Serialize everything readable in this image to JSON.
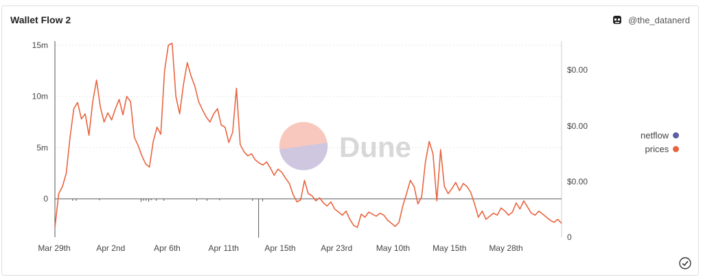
{
  "header": {
    "title": "Wallet Flow 2",
    "author": "@the_datanerd"
  },
  "watermark": {
    "text": "Dune"
  },
  "status": {
    "icon": "check-circle-icon"
  },
  "colors": {
    "netflow": "#5b5ea6",
    "prices": "#e8643f",
    "axis": "#555555",
    "grid": "#e6e6e6"
  },
  "chart_data": {
    "type": "line",
    "title": "Wallet Flow 2",
    "legend_position": "right",
    "x_tick_labels": [
      "Mar 29th",
      "Apr 2nd",
      "Apr 6th",
      "Apr 11th",
      "Apr 15th",
      "Apr 23rd",
      "May 10th",
      "May 15th",
      "May 28th"
    ],
    "y_left": {
      "ticks": [
        "15m",
        "10m",
        "5m",
        "0"
      ],
      "tick_values": [
        15000000,
        10000000,
        5000000,
        0
      ]
    },
    "y_right": {
      "ticks": [
        "$0.00",
        "$0.00",
        "$0.00",
        "0"
      ]
    },
    "series": [
      {
        "name": "prices",
        "axis": "right",
        "values": [
          -2.8,
          0.5,
          1.2,
          2.5,
          6.0,
          8.8,
          9.4,
          7.8,
          8.3,
          6.2,
          9.5,
          11.6,
          9.0,
          7.5,
          8.4,
          7.7,
          8.8,
          9.7,
          8.2,
          10.0,
          9.5,
          6.0,
          5.2,
          4.2,
          3.4,
          3.1,
          5.6,
          7.0,
          6.3,
          12.5,
          15.0,
          15.2,
          10.0,
          8.3,
          11.2,
          13.3,
          12.0,
          11.0,
          9.5,
          8.7,
          8.0,
          7.5,
          8.3,
          8.8,
          7.2,
          7.0,
          5.5,
          6.5,
          10.8,
          5.3,
          4.6,
          4.2,
          4.4,
          3.8,
          3.5,
          3.3,
          3.6,
          3.0,
          2.3,
          2.9,
          2.6,
          2.0,
          1.5,
          0.4,
          -0.3,
          -0.1,
          1.8,
          0.5,
          0.3,
          -0.2,
          0.1,
          -0.4,
          -0.7,
          -0.3,
          -1.0,
          -1.3,
          -1.6,
          -1.2,
          -2.0,
          -2.6,
          -2.8,
          -1.5,
          -1.8,
          -1.3,
          -1.5,
          -1.7,
          -1.4,
          -1.6,
          -2.1,
          -2.4,
          -2.7,
          -2.3,
          -0.7,
          0.5,
          1.8,
          1.2,
          -0.5,
          0.2,
          3.6,
          5.6,
          4.4,
          -0.2,
          4.8,
          1.2,
          0.5,
          1.0,
          1.6,
          0.8,
          1.5,
          1.2,
          0.6,
          -0.5,
          -1.8,
          -1.2,
          -2.0,
          -1.7,
          -1.4,
          -1.6,
          -0.9,
          -1.2,
          -1.6,
          -1.3,
          -0.4,
          -1.0,
          -0.2,
          -0.8,
          -1.4,
          -1.6,
          -1.2,
          -1.5,
          -1.8,
          -2.1,
          -2.3,
          -2.0,
          -2.4
        ]
      },
      {
        "name": "netflow",
        "axis": "left",
        "points": [
          {
            "at": 0.0,
            "value": -1800000
          },
          {
            "at": 0.035,
            "value": -200000
          },
          {
            "at": 0.042,
            "value": -200000
          },
          {
            "at": 0.088,
            "value": -150000
          },
          {
            "at": 0.17,
            "value": -300000
          },
          {
            "at": 0.175,
            "value": -200000
          },
          {
            "at": 0.18,
            "value": -200000
          },
          {
            "at": 0.185,
            "value": -300000
          },
          {
            "at": 0.19,
            "value": -150000
          },
          {
            "at": 0.2,
            "value": -200000
          },
          {
            "at": 0.215,
            "value": -200000
          },
          {
            "at": 0.28,
            "value": -200000
          },
          {
            "at": 0.3,
            "value": -200000
          },
          {
            "at": 0.325,
            "value": -150000
          },
          {
            "at": 0.39,
            "value": -200000
          },
          {
            "at": 0.402,
            "value": -3800000
          },
          {
            "at": 0.41,
            "value": -250000
          }
        ]
      }
    ]
  }
}
